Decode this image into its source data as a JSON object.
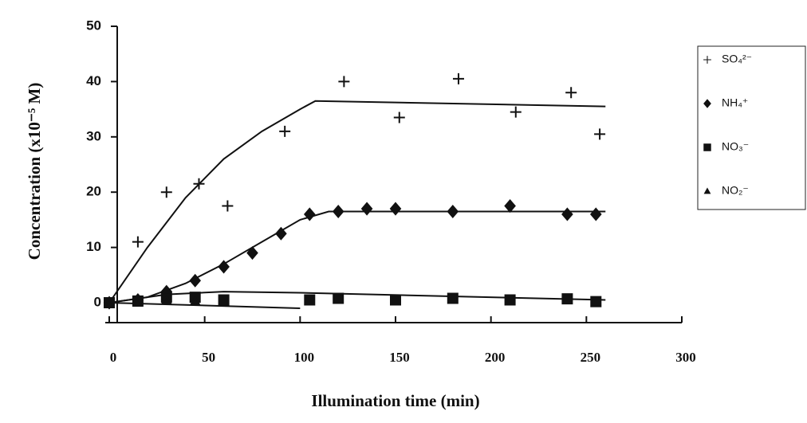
{
  "chart_data": {
    "type": "scatter",
    "xlabel": "Illumination time (min)",
    "ylabel": "Concentration (x10⁻⁵ M)",
    "xlim": [
      0,
      300
    ],
    "xticks": [
      0,
      50,
      100,
      150,
      200,
      250,
      300
    ],
    "ylim": [
      -3.6,
      50
    ],
    "yticks": [
      0,
      10,
      20,
      30,
      40,
      50
    ],
    "series": [
      {
        "name": "SO₄²⁻",
        "marker": "plus",
        "color": "#111",
        "x": [
          0,
          15,
          30,
          47,
          62,
          92,
          123,
          152,
          183,
          213,
          242,
          257
        ],
        "values": [
          0,
          11,
          20,
          21.5,
          17.5,
          31,
          40,
          33.5,
          40.5,
          34.5,
          38,
          30.5
        ],
        "fit_x": [
          0,
          20,
          40,
          60,
          80,
          100,
          108,
          260
        ],
        "fit_values": [
          0,
          10,
          19,
          26,
          31,
          35,
          36.5,
          35.5
        ]
      },
      {
        "name": "NH₄⁺",
        "marker": "diamond",
        "color": "#111",
        "x": [
          0,
          15,
          30,
          45,
          60,
          75,
          90,
          105,
          120,
          135,
          150,
          180,
          210,
          240,
          255
        ],
        "values": [
          0,
          0.5,
          2,
          4,
          6.5,
          9,
          12.5,
          16,
          16.5,
          17,
          17,
          16.5,
          17.5,
          16,
          16
        ],
        "fit_x": [
          0,
          20,
          40,
          60,
          80,
          100,
          115,
          260
        ],
        "fit_values": [
          0,
          1,
          3.5,
          7,
          11,
          15,
          16.5,
          16.5
        ]
      },
      {
        "name": "NO₃⁻",
        "marker": "square",
        "color": "#111",
        "x": [
          0,
          15,
          30,
          45,
          60,
          105,
          120,
          150,
          180,
          210,
          240,
          255
        ],
        "values": [
          0,
          0.3,
          1,
          1,
          0.5,
          0.5,
          0.8,
          0.5,
          0.8,
          0.5,
          0.7,
          0.2
        ],
        "fit_x": [
          0,
          30,
          60,
          100,
          260
        ],
        "fit_values": [
          0,
          1.5,
          2,
          1.8,
          0.5
        ]
      },
      {
        "name": "NO₂⁻",
        "marker": "triangle",
        "color": "#111",
        "x": [
          0,
          15,
          30,
          45
        ],
        "values": [
          0,
          0,
          0.5,
          0.3
        ],
        "fit_x": [
          0,
          100
        ],
        "fit_values": [
          0,
          -1
        ]
      }
    ]
  }
}
